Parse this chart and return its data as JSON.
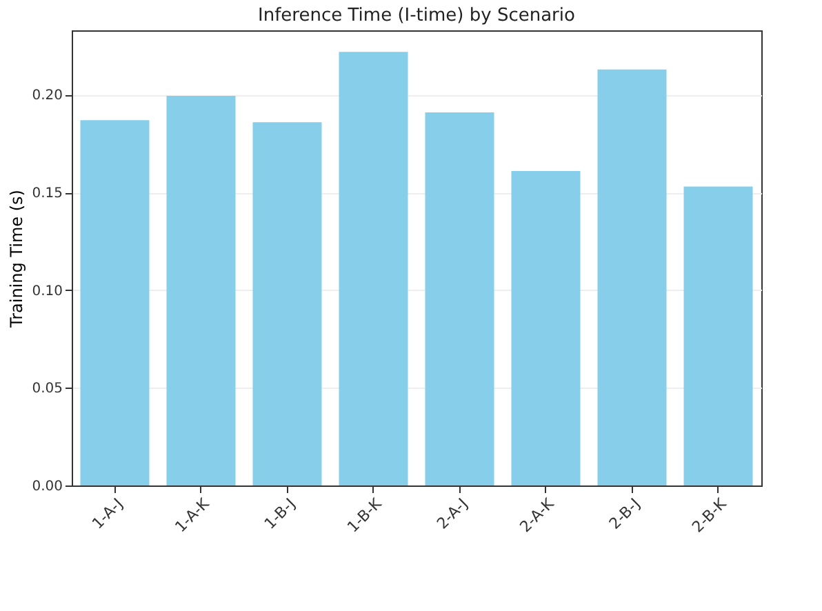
{
  "chart_data": {
    "type": "bar",
    "title": "Inference Time (I-time) by Scenario",
    "ylabel": "Training Time (s)",
    "categories": [
      "1-A-J",
      "1-A-K",
      "1-B-J",
      "1-B-K",
      "2-A-J",
      "2-A-K",
      "2-B-J",
      "2-B-K"
    ],
    "values": [
      0.187,
      0.1995,
      0.186,
      0.222,
      0.191,
      0.161,
      0.213,
      0.153
    ],
    "color": "#87ceeb",
    "ylim": [
      0,
      0.233
    ],
    "yticks": [
      {
        "value": 0,
        "label": "0.00"
      },
      {
        "value": 0.05,
        "label": "0.05"
      },
      {
        "value": 0.1,
        "label": "0.10"
      },
      {
        "value": 0.15,
        "label": "0.15"
      },
      {
        "value": 0.2,
        "label": "0.20"
      }
    ],
    "grid": "y"
  }
}
